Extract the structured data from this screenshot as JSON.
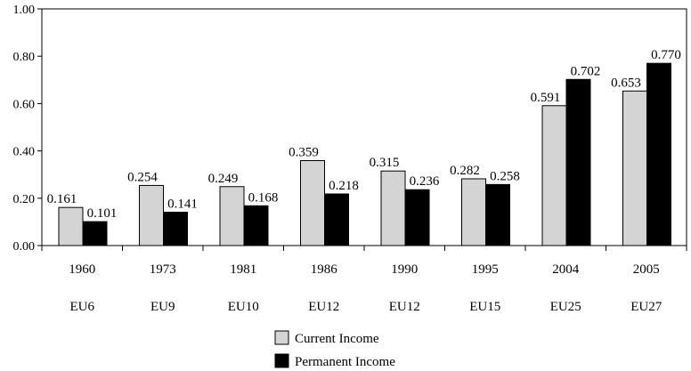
{
  "chart_data": {
    "type": "bar",
    "categories": [
      "1960",
      "1973",
      "1981",
      "1986",
      "1990",
      "1995",
      "2004",
      "2005"
    ],
    "subcategories": [
      "EU6",
      "EU9",
      "EU10",
      "EU12",
      "EU12",
      "EU15",
      "EU25",
      "EU27"
    ],
    "series": [
      {
        "name": "Current Income",
        "color": "#d4d4d4",
        "values": [
          0.161,
          0.254,
          0.249,
          0.359,
          0.315,
          0.282,
          0.591,
          0.653
        ],
        "labels": [
          "0.161",
          "0.254",
          "0.249",
          "0.359",
          "0.315",
          "0.282",
          "0.591",
          "0.653"
        ]
      },
      {
        "name": "Permanent Income",
        "color": "#000000",
        "values": [
          0.101,
          0.141,
          0.168,
          0.218,
          0.236,
          0.258,
          0.702,
          0.77
        ],
        "labels": [
          "0.101",
          "0.141",
          "0.168",
          "0.218",
          "0.236",
          "0.258",
          "0.702",
          "0.770"
        ]
      }
    ],
    "yticks": [
      "0.00",
      "0.20",
      "0.40",
      "0.60",
      "0.80",
      "1.00"
    ],
    "ylim": [
      0,
      1.0
    ],
    "grid": false,
    "legend_position": "bottom-center"
  }
}
